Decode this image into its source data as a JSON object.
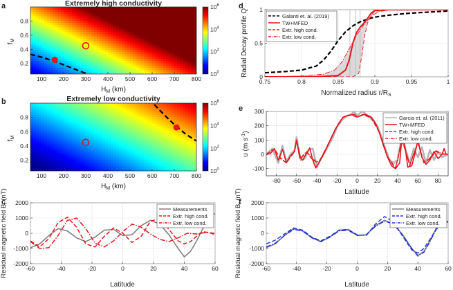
{
  "chart_data": [
    {
      "panel": "a",
      "type": "heatmap",
      "title": "Extremely high conductivity",
      "xlabel": "H_M (km)",
      "ylabel": "f_M",
      "xlim": [
        50,
        800
      ],
      "ylim": [
        0.05,
        1.0
      ],
      "xticks": [
        100,
        200,
        300,
        400,
        500,
        600,
        700,
        800
      ],
      "yticks": [
        0.2,
        0.4,
        0.6,
        0.8
      ],
      "colorbar": {
        "scale": "log",
        "range": [
          1,
          1000000
        ],
        "tick_labels": [
          "10^0",
          "10^2",
          "10^4",
          "10^6"
        ]
      },
      "log10_base": 0.5,
      "log10_gain": 9.5,
      "dashed_curve": {
        "x": [
          50,
          100,
          150,
          200,
          250,
          300
        ],
        "y": [
          0.33,
          0.29,
          0.24,
          0.18,
          0.12,
          0.06
        ]
      },
      "filled_marker": {
        "x": 160,
        "y": 0.25
      },
      "open_marker": {
        "x": 300,
        "y": 0.45
      }
    },
    {
      "panel": "b",
      "type": "heatmap",
      "title": "Extremely low conductivity",
      "xlabel": "H_M (km)",
      "ylabel": "f_M",
      "xlim": [
        50,
        800
      ],
      "ylim": [
        0.05,
        1.0
      ],
      "xticks": [
        100,
        200,
        300,
        400,
        500,
        600,
        700,
        800
      ],
      "yticks": [
        0.2,
        0.4,
        0.6,
        0.8
      ],
      "colorbar": {
        "scale": "log",
        "range": [
          1,
          1000000
        ],
        "tick_labels": [
          "10^0",
          "10^2",
          "10^4",
          "10^6"
        ]
      },
      "log10_base": -0.2,
      "log10_gain": 5.8,
      "dashed_curve": {
        "x": [
          610,
          650,
          700,
          750,
          800
        ],
        "y": [
          0.98,
          0.85,
          0.7,
          0.57,
          0.47
        ]
      },
      "filled_marker": {
        "x": 710,
        "y": 0.66
      },
      "open_marker": {
        "x": 300,
        "y": 0.45
      }
    },
    {
      "panel": "c",
      "type": "line",
      "xlabel": "Latitude",
      "ylabel": "Residual magnetic field B_r (nT)",
      "xlim": [
        -60,
        60
      ],
      "ylim": [
        -2000,
        2000
      ],
      "xticks": [
        -60,
        -40,
        -20,
        0,
        20,
        40,
        60
      ],
      "yticks": [
        -2000,
        -1000,
        0,
        1000,
        2000
      ],
      "series": [
        {
          "name": "Measurements",
          "color": "#808080",
          "style": "solid",
          "x": [
            -60,
            -54,
            -48,
            -42,
            -36,
            -30,
            -24,
            -18,
            -12,
            -6,
            0,
            6,
            12,
            18,
            24,
            30,
            36,
            40,
            44,
            48,
            52,
            56,
            60
          ],
          "y": [
            -950,
            -700,
            -150,
            300,
            150,
            -300,
            -550,
            -250,
            200,
            250,
            -150,
            -100,
            500,
            850,
            600,
            -100,
            -1000,
            -1550,
            -1200,
            -500,
            300,
            1000,
            1300
          ]
        },
        {
          "name": "Extr. high cond.",
          "color": "#e8141c",
          "style": "dashed",
          "x": [
            -60,
            -54,
            -48,
            -42,
            -36,
            -30,
            -24,
            -18,
            -12,
            -6,
            0,
            6,
            12,
            18,
            24,
            30,
            36,
            40,
            44,
            48,
            52,
            56,
            60
          ],
          "y": [
            -500,
            -900,
            -350,
            700,
            1050,
            400,
            -700,
            -900,
            -200,
            350,
            0,
            -600,
            -200,
            800,
            950,
            250,
            -500,
            -700,
            -550,
            -200,
            100,
            50,
            -100
          ]
        },
        {
          "name": "Extr. low cond.",
          "color": "#e8141c",
          "style": "dashdot",
          "x": [
            -60,
            -54,
            -48,
            -42,
            -36,
            -30,
            -24,
            -18,
            -12,
            -6,
            0,
            6,
            12,
            18,
            24,
            30,
            36,
            42,
            48,
            54,
            60
          ],
          "y": [
            -550,
            -1000,
            -950,
            -150,
            850,
            1000,
            300,
            -650,
            -900,
            -500,
            100,
            600,
            400,
            -50,
            -400,
            -550,
            -300,
            0,
            -50,
            50,
            0
          ]
        }
      ],
      "legend": "top-right"
    },
    {
      "panel": "d",
      "type": "line",
      "xlabel": "Normalized radius r/R_S",
      "ylabel": "Radial Decay profile Q",
      "xlim": [
        0.75,
        1.0
      ],
      "ylim": [
        0,
        1
      ],
      "xticks": [
        0.75,
        0.8,
        0.85,
        0.9,
        0.95,
        1
      ],
      "yticks": [
        0,
        0.5,
        1
      ],
      "series": [
        {
          "name": "Galanti et. al. (2019)",
          "color": "#000000",
          "style": "dashed",
          "x": [
            0.75,
            0.78,
            0.8,
            0.82,
            0.83,
            0.84,
            0.85,
            0.86,
            0.87,
            0.88,
            0.89,
            0.9,
            0.92,
            0.95,
            1.0
          ],
          "y": [
            0.06,
            0.08,
            0.1,
            0.16,
            0.25,
            0.38,
            0.54,
            0.67,
            0.76,
            0.82,
            0.86,
            0.89,
            0.92,
            0.95,
            0.98
          ]
        },
        {
          "name": "TW+MFED",
          "color": "#e8141c",
          "style": "solid",
          "x": [
            0.75,
            0.82,
            0.85,
            0.86,
            0.865,
            0.87,
            0.875,
            0.88,
            0.885,
            0.89,
            0.895,
            0.9,
            0.92,
            1.0
          ],
          "y": [
            0.0,
            0.0,
            0.02,
            0.1,
            0.25,
            0.5,
            0.66,
            0.74,
            0.8,
            0.87,
            0.95,
            0.99,
            1.0,
            1.0
          ]
        },
        {
          "name": "Extr. high cond.",
          "color": "#e8141c",
          "style": "dashed",
          "x": [
            0.75,
            0.87,
            0.878,
            0.882,
            0.886,
            0.89,
            0.895,
            0.9,
            0.92,
            1.0
          ],
          "y": [
            0.0,
            0.0,
            0.05,
            0.3,
            0.6,
            0.8,
            0.92,
            0.98,
            1.0,
            1.0
          ]
        },
        {
          "name": "Extr. low cond.",
          "color": "#e8141c",
          "style": "dashdot",
          "x": [
            0.75,
            0.8,
            0.83,
            0.845,
            0.855,
            0.865,
            0.875,
            0.885,
            0.895,
            0.905,
            0.92,
            1.0
          ],
          "y": [
            0.0,
            0.01,
            0.04,
            0.1,
            0.22,
            0.42,
            0.62,
            0.78,
            0.9,
            0.97,
            1.0,
            1.0
          ]
        }
      ],
      "shaded_band": {
        "x_low": [
          0.75,
          0.83,
          0.845,
          0.855,
          0.865,
          0.875,
          0.885,
          0.895,
          0.905,
          1.0
        ],
        "y_low": [
          0,
          0.04,
          0.1,
          0.22,
          0.42,
          0.62,
          0.78,
          0.9,
          0.97,
          1.0
        ],
        "x_high": [
          0.75,
          0.87,
          0.878,
          0.882,
          0.886,
          0.89,
          0.895,
          0.9,
          1.0
        ],
        "y_high": [
          0,
          0,
          0.05,
          0.3,
          0.6,
          0.8,
          0.92,
          0.98,
          1.0
        ]
      },
      "vertical_lines": [
        0.866,
        0.874,
        0.88
      ],
      "legend": "top-left"
    },
    {
      "panel": "e",
      "type": "line",
      "xlabel": "Latitude",
      "ylabel": "u (m s^-1)",
      "xlim": [
        -90,
        90
      ],
      "ylim": [
        -150,
        300
      ],
      "xticks": [
        -80,
        -60,
        -40,
        -20,
        0,
        20,
        40,
        60,
        80
      ],
      "yticks": [
        -100,
        0,
        100,
        200,
        300
      ],
      "series": [
        {
          "name": "Garcia et. al. (2011)",
          "color": "#b4b4b4",
          "style": "solid",
          "x": [
            -90,
            -84,
            -78,
            -74,
            -70,
            -66,
            -62,
            -60,
            -56,
            -52,
            -48,
            -44,
            -40,
            -36,
            -30,
            -24,
            -20,
            -15,
            -10,
            -6,
            -3,
            0,
            3,
            6,
            10,
            15,
            20,
            24,
            28,
            32,
            36,
            40,
            44,
            48,
            52,
            56,
            60,
            64,
            68,
            72,
            76,
            80,
            84,
            90
          ],
          "y": [
            0,
            40,
            -60,
            60,
            -50,
            0,
            30,
            120,
            -40,
            -30,
            30,
            40,
            -90,
            -30,
            40,
            120,
            190,
            240,
            270,
            280,
            300,
            270,
            290,
            300,
            270,
            240,
            200,
            120,
            40,
            -40,
            -60,
            -40,
            120,
            30,
            -60,
            40,
            -20,
            50,
            -60,
            30,
            -40,
            20,
            -20,
            0
          ]
        },
        {
          "name": "TW+MFED",
          "color": "#e8141c",
          "style": "solid",
          "x": [
            -90,
            -86,
            -82,
            -78,
            -74,
            -70,
            -66,
            -62,
            -60,
            -57,
            -54,
            -50,
            -47,
            -44,
            -41,
            -38,
            -34,
            -30,
            -26,
            -22,
            -18,
            -14,
            -10,
            -6,
            -3,
            0,
            3,
            6,
            10,
            14,
            18,
            22,
            26,
            30,
            34,
            38,
            42,
            44,
            46,
            48,
            50,
            54,
            57,
            60,
            64,
            68,
            72,
            76,
            80,
            84,
            86,
            88,
            90
          ],
          "y": [
            0,
            5,
            40,
            -40,
            35,
            -60,
            -10,
            20,
            100,
            -20,
            -40,
            10,
            45,
            -40,
            -95,
            -60,
            -10,
            50,
            110,
            170,
            220,
            260,
            270,
            275,
            280,
            260,
            270,
            280,
            275,
            260,
            220,
            150,
            60,
            -20,
            -80,
            -100,
            -60,
            100,
            110,
            20,
            -90,
            -80,
            0,
            100,
            -20,
            -70,
            -40,
            20,
            -30,
            0,
            40,
            0,
            0
          ]
        },
        {
          "name": "Extr. high cond.",
          "color": "#e8141c",
          "style": "dashed",
          "x": [
            -90,
            -82,
            -76,
            -70,
            -62,
            -60,
            -56,
            -50,
            -44,
            -38,
            -30,
            -22,
            -14,
            -6,
            0,
            6,
            14,
            22,
            30,
            38,
            44,
            48,
            52,
            56,
            60,
            66,
            72,
            78,
            84,
            90
          ],
          "y": [
            0,
            40,
            -30,
            -60,
            20,
            100,
            -30,
            15,
            -40,
            -60,
            50,
            170,
            260,
            275,
            260,
            275,
            255,
            150,
            -20,
            -100,
            100,
            20,
            -80,
            0,
            80,
            -60,
            -30,
            20,
            0,
            0
          ]
        },
        {
          "name": "Extr. low cond.",
          "color": "#e8141c",
          "style": "dashdot",
          "x": [
            -90,
            -82,
            -76,
            -70,
            -62,
            -60,
            -56,
            -50,
            -44,
            -38,
            -30,
            -22,
            -14,
            -6,
            0,
            6,
            14,
            22,
            30,
            38,
            44,
            48,
            52,
            56,
            60,
            66,
            72,
            78,
            84,
            90
          ],
          "y": [
            0,
            35,
            -25,
            -55,
            25,
            95,
            -25,
            20,
            -35,
            -55,
            55,
            175,
            262,
            278,
            262,
            278,
            258,
            155,
            -15,
            -95,
            95,
            25,
            -75,
            5,
            85,
            -55,
            -25,
            25,
            5,
            0
          ]
        }
      ],
      "legend": "top-right"
    },
    {
      "panel": "f",
      "type": "line",
      "xlabel": "Latitude",
      "ylabel": "Residual magnetic field B_r (nT)",
      "xlim": [
        -60,
        60
      ],
      "ylim": [
        -2000,
        2000
      ],
      "xticks": [
        -60,
        -40,
        -20,
        0,
        20,
        40,
        60
      ],
      "yticks": [
        -2000,
        -1000,
        0,
        1000,
        2000
      ],
      "series": [
        {
          "name": "Measurements",
          "color": "#808080",
          "style": "solid",
          "x": [
            -60,
            -54,
            -48,
            -42,
            -36,
            -30,
            -24,
            -18,
            -12,
            -6,
            0,
            6,
            12,
            18,
            24,
            30,
            36,
            40,
            44,
            48,
            52,
            56,
            60
          ],
          "y": [
            -950,
            -700,
            -150,
            300,
            150,
            -300,
            -550,
            -250,
            200,
            250,
            -150,
            -100,
            500,
            850,
            600,
            -100,
            -1000,
            -1450,
            -1200,
            -500,
            300,
            700,
            800
          ]
        },
        {
          "name": "Extr. high cond.",
          "color": "#1f2fd6",
          "style": "dashed",
          "x": [
            -60,
            -54,
            -48,
            -42,
            -36,
            -30,
            -24,
            -18,
            -12,
            -6,
            0,
            6,
            12,
            18,
            24,
            30,
            36,
            40,
            44,
            48,
            52,
            56,
            60
          ],
          "y": [
            -700,
            -450,
            -50,
            350,
            200,
            -250,
            -500,
            -200,
            200,
            250,
            -100,
            -150,
            600,
            1100,
            750,
            -200,
            -1100,
            -1300,
            -1000,
            -400,
            250,
            600,
            750
          ]
        },
        {
          "name": "Extr. low cond.",
          "color": "#1f2fd6",
          "style": "dashdot",
          "x": [
            -60,
            -54,
            -48,
            -42,
            -36,
            -30,
            -24,
            -18,
            -12,
            -6,
            0,
            6,
            12,
            18,
            24,
            30,
            36,
            40,
            44,
            48,
            52,
            56,
            60
          ],
          "y": [
            -900,
            -650,
            -150,
            250,
            150,
            -300,
            -550,
            -250,
            150,
            200,
            -150,
            -100,
            450,
            800,
            600,
            -150,
            -1000,
            -1500,
            -1250,
            -550,
            250,
            650,
            800
          ]
        }
      ],
      "legend": "top-right"
    }
  ]
}
